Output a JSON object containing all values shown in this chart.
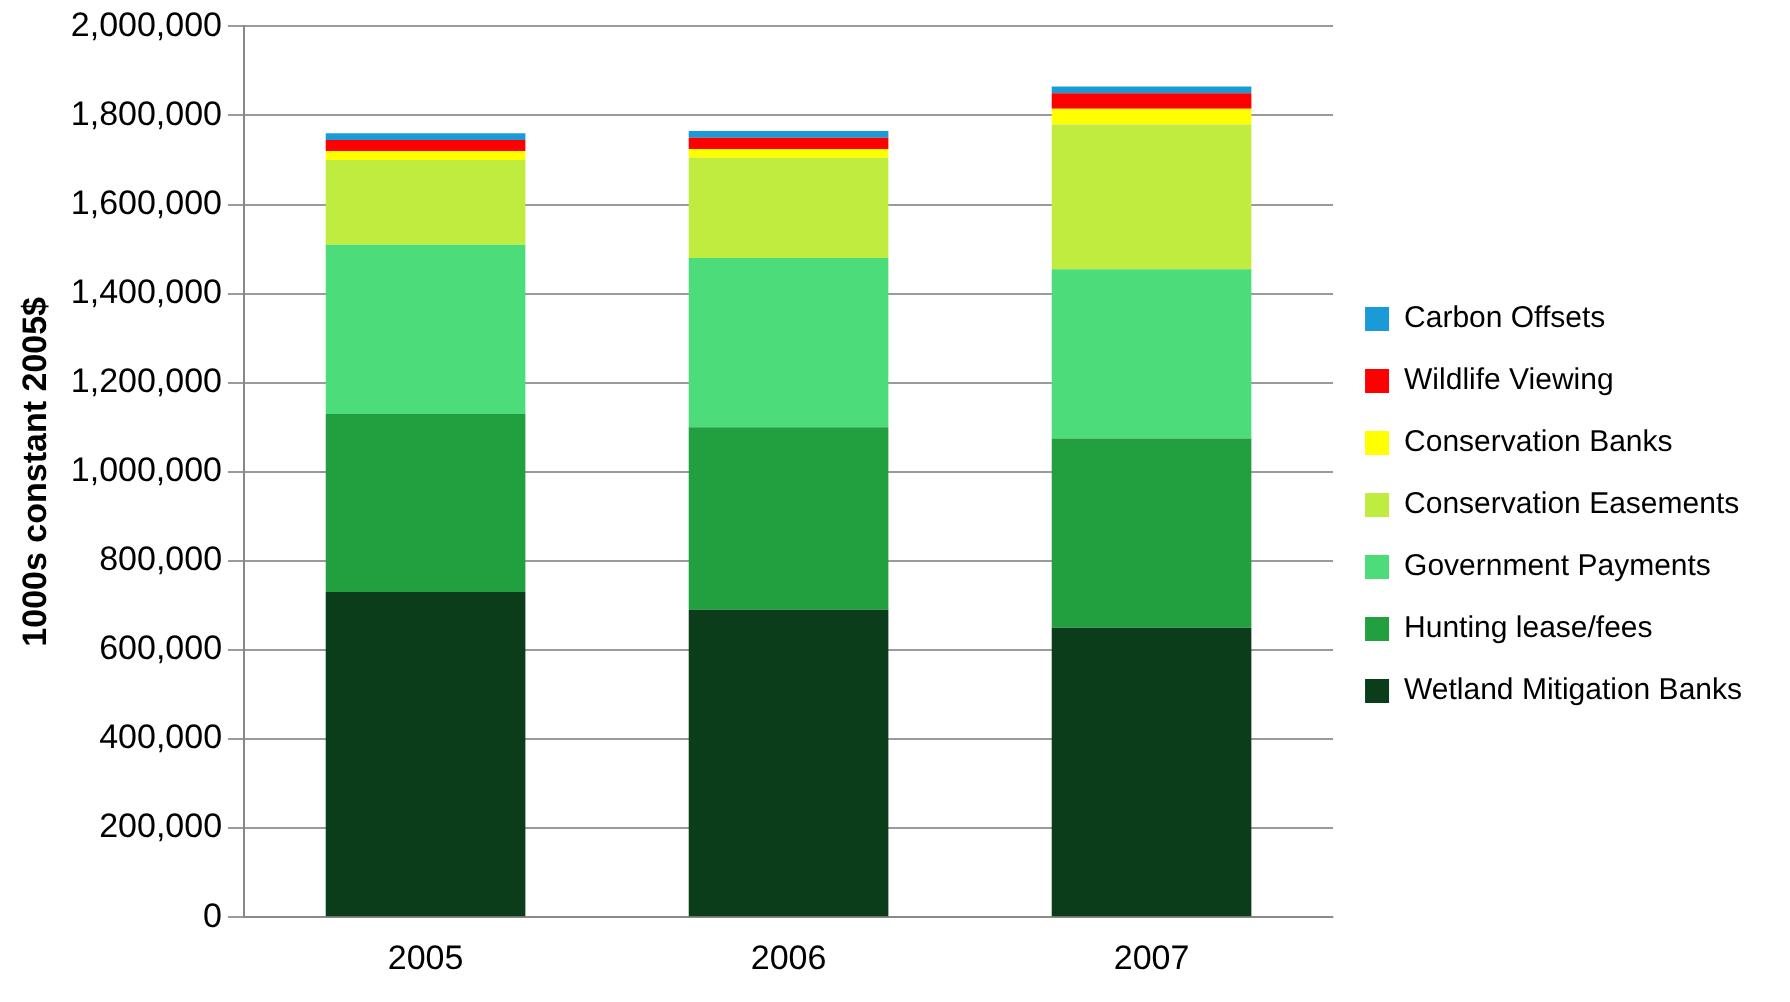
{
  "chart_data": {
    "type": "bar",
    "stacked": true,
    "ylabel": "1000s constant 2005$",
    "categories": [
      "2005",
      "2006",
      "2007"
    ],
    "series": [
      {
        "name": "Wetland Mitigation Banks",
        "color": "#0b3d1a",
        "values": [
          730000,
          690000,
          650000
        ]
      },
      {
        "name": "Hunting lease/fees",
        "color": "#22a040",
        "values": [
          400000,
          410000,
          425000
        ]
      },
      {
        "name": "Government Payments",
        "color": "#4ddc7a",
        "values": [
          380000,
          380000,
          380000
        ]
      },
      {
        "name": "Conservation Easements",
        "color": "#c0ec40",
        "values": [
          190000,
          225000,
          325000
        ]
      },
      {
        "name": "Conservation Banks",
        "color": "#ffff00",
        "values": [
          20000,
          20000,
          35000
        ]
      },
      {
        "name": "Wildlife Viewing",
        "color": "#ff0000",
        "values": [
          25000,
          25000,
          35000
        ]
      },
      {
        "name": "Carbon Offsets",
        "color": "#1a9bd7",
        "values": [
          15000,
          15000,
          15000
        ]
      }
    ],
    "ylim": [
      0,
      2000000
    ],
    "yticks": [
      {
        "value": 0,
        "label": "0"
      },
      {
        "value": 200000,
        "label": "200,000"
      },
      {
        "value": 400000,
        "label": "400,000"
      },
      {
        "value": 600000,
        "label": "600,000"
      },
      {
        "value": 800000,
        "label": "800,000"
      },
      {
        "value": 1000000,
        "label": "1,000,000"
      },
      {
        "value": 1200000,
        "label": "1,200,000"
      },
      {
        "value": 1400000,
        "label": "1,400,000"
      },
      {
        "value": 1600000,
        "label": "1,600,000"
      },
      {
        "value": 1800000,
        "label": "1,800,000"
      },
      {
        "value": 2000000,
        "label": "2,000,000"
      }
    ],
    "grid": "y",
    "legend": "right"
  }
}
